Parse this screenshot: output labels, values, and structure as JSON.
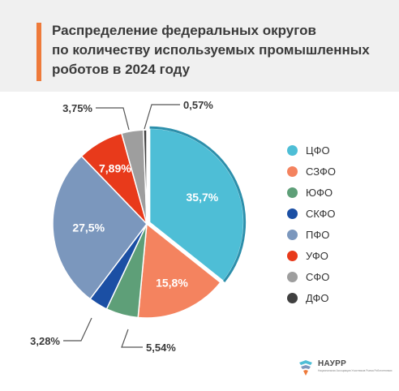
{
  "title_lines": [
    "Распределение федеральных округов",
    "по количеству используемых промышленных",
    "роботов в 2024 году"
  ],
  "chart_data": {
    "type": "pie",
    "title": "Распределение федеральных округов по количеству используемых промышленных роботов в 2024 году",
    "legend_position": "right",
    "slices": [
      {
        "name": "ЦФО",
        "value": 35.7,
        "label": "35,7%",
        "color": "#4ebed6",
        "label_position": "inside"
      },
      {
        "name": "СЗФО",
        "value": 15.8,
        "label": "15,8%",
        "color": "#f4835f",
        "label_position": "inside"
      },
      {
        "name": "ЮФО",
        "value": 5.54,
        "label": "5,54%",
        "color": "#5e9f78",
        "label_position": "outside"
      },
      {
        "name": "СКФО",
        "value": 3.28,
        "label": "3,28%",
        "color": "#1b4fa4",
        "label_position": "outside"
      },
      {
        "name": "ПФО",
        "value": 27.5,
        "label": "27,5%",
        "color": "#7b97bd",
        "label_position": "inside"
      },
      {
        "name": "УФО",
        "value": 7.89,
        "label": "7,89%",
        "color": "#e83a1b",
        "label_position": "inside"
      },
      {
        "name": "СФО",
        "value": 3.75,
        "label": "3,75%",
        "color": "#9e9e9e",
        "label_position": "outside"
      },
      {
        "name": "ДФО",
        "value": 0.57,
        "label": "0,57%",
        "color": "#404040",
        "label_position": "outside"
      }
    ]
  },
  "logo": {
    "name": "НАУРР",
    "subtitle": "Национальная Ассоциация Участников Рынка Робототехники"
  }
}
